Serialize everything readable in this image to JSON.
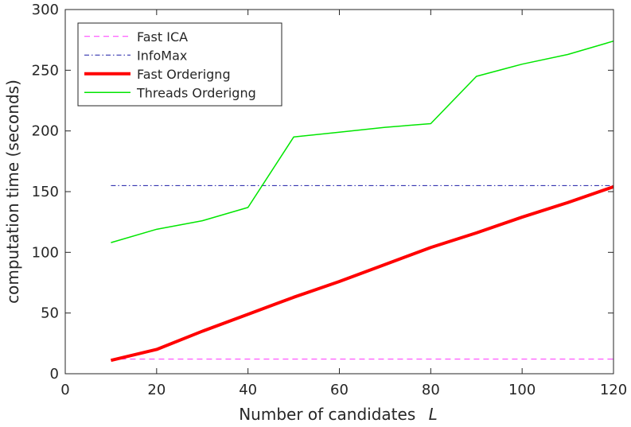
{
  "chart_data": {
    "type": "line",
    "xlabel": "Number of candidates",
    "xlabel_var": "L",
    "ylabel": "computation time (seconds)",
    "xlim": [
      0,
      120
    ],
    "ylim": [
      0,
      300
    ],
    "xticks": [
      0,
      20,
      40,
      60,
      80,
      100,
      120
    ],
    "yticks": [
      0,
      50,
      100,
      150,
      200,
      250,
      300
    ],
    "grid": false,
    "legend_position": "top-left",
    "series": [
      {
        "name": "Fast ICA",
        "color": "#ff33ff",
        "style": "dashed",
        "width": 1,
        "x": [
          10,
          120
        ],
        "y": [
          12,
          12
        ]
      },
      {
        "name": "InfoMax",
        "color": "#1a1aa6",
        "style": "dashdot",
        "width": 1,
        "x": [
          10,
          120
        ],
        "y": [
          155,
          155
        ]
      },
      {
        "name": "Fast Orderigng",
        "color": "#ff0000",
        "style": "solid",
        "width": 4,
        "x": [
          10,
          20,
          30,
          40,
          50,
          60,
          70,
          80,
          90,
          100,
          110,
          120
        ],
        "y": [
          11,
          20,
          35,
          49,
          63,
          76,
          90,
          104,
          116,
          129,
          141,
          154
        ]
      },
      {
        "name": "Threads Orderigng",
        "color": "#00e600",
        "style": "solid",
        "width": 1.5,
        "x": [
          10,
          20,
          30,
          40,
          50,
          60,
          70,
          80,
          90,
          100,
          110,
          120
        ],
        "y": [
          108,
          119,
          126,
          137,
          195,
          199,
          203,
          206,
          245,
          255,
          263,
          274
        ]
      }
    ]
  }
}
